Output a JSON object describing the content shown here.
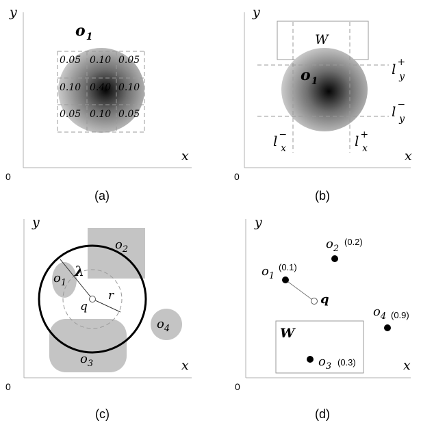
{
  "panels": {
    "a": {
      "caption": "(a)",
      "axis_y": "y",
      "axis_x": "x",
      "origin": "0",
      "object_label": "o",
      "object_sub": "1",
      "grid_probabilities": [
        [
          "0.05",
          "0.10",
          "0.05"
        ],
        [
          "0.10",
          "0.40",
          "0.10"
        ],
        [
          "0.05",
          "0.10",
          "0.05"
        ]
      ]
    },
    "b": {
      "caption": "(b)",
      "axis_y": "y",
      "axis_x": "x",
      "origin": "0",
      "window_label": "W",
      "object_label": "o",
      "object_sub": "1",
      "ly_plus": {
        "base": "l",
        "sub": "y",
        "sup": "+"
      },
      "ly_minus": {
        "base": "l",
        "sub": "y",
        "sup": "−"
      },
      "lx_minus": {
        "base": "l",
        "sub": "x",
        "sup": "−"
      },
      "lx_plus": {
        "base": "l",
        "sub": "x",
        "sup": "+"
      }
    },
    "c": {
      "caption": "(c)",
      "axis_y": "y",
      "axis_x": "x",
      "origin": "0",
      "lambda": "λ",
      "q": "q",
      "r": "r",
      "objects": [
        {
          "base": "o",
          "sub": "1"
        },
        {
          "base": "o",
          "sub": "2"
        },
        {
          "base": "o",
          "sub": "3"
        },
        {
          "base": "o",
          "sub": "4"
        }
      ]
    },
    "d": {
      "caption": "(d)",
      "axis_y": "y",
      "axis_x": "x",
      "origin": "0",
      "window_label": "W",
      "q": "q",
      "objects": [
        {
          "base": "o",
          "sub": "1",
          "prob": "(0.1)"
        },
        {
          "base": "o",
          "sub": "2",
          "prob": "(0.2)"
        },
        {
          "base": "o",
          "sub": "3",
          "prob": "(0.3)"
        },
        {
          "base": "o",
          "sub": "4",
          "prob": "(0.9)"
        }
      ]
    }
  }
}
